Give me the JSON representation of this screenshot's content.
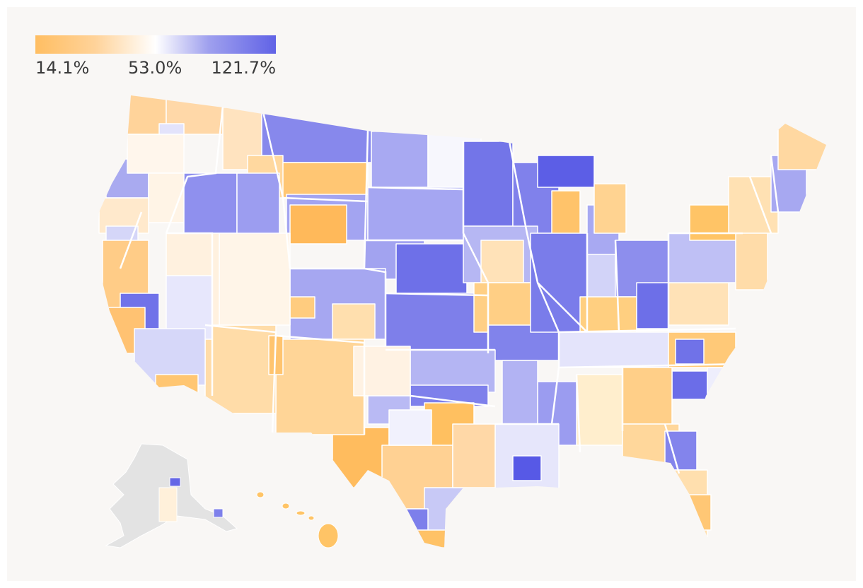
{
  "legend": {
    "min_label": "14.1%",
    "mid_label": "53.0%",
    "max_label": "121.7%",
    "min_value": 14.1,
    "mid_value": 53.0,
    "max_value": 121.7,
    "colors": {
      "low": "#ffbe62",
      "mid": "#ffffff",
      "high": "#6163e6"
    }
  },
  "colors": {
    "background": "#f9f7f5",
    "no_data": "#e3e3e3",
    "boundary": "#ffffff"
  }
}
